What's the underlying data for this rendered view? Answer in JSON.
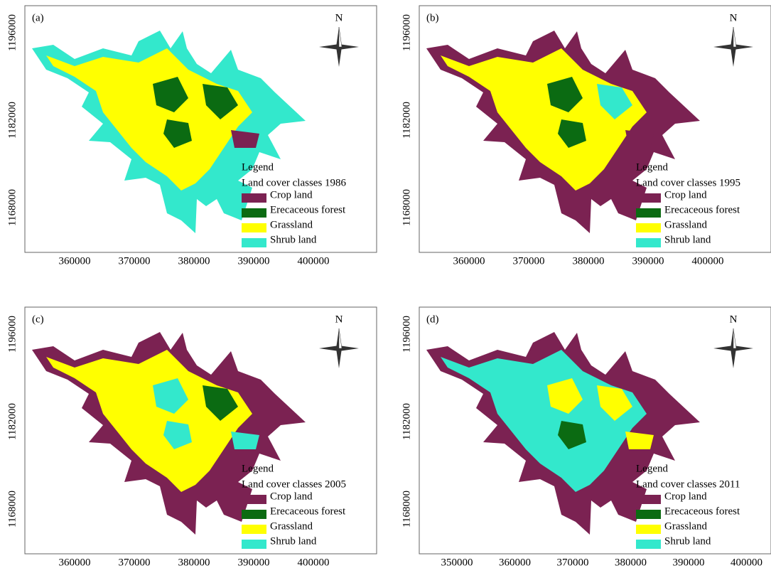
{
  "panels": [
    {
      "label": "(a)",
      "north": "N",
      "legend_title": "Legend",
      "legend_subtitle": "Land cover classes 1986",
      "legend": [
        {
          "name": "Crop land",
          "color": "#7b2252"
        },
        {
          "name": "Erecaceous forest",
          "color": "#0b6b12"
        },
        {
          "name": "Grassland",
          "color": "#ffff00"
        },
        {
          "name": "Shrub land",
          "color": "#33e8cc"
        }
      ],
      "xticks": [
        360000,
        370000,
        380000,
        390000,
        400000
      ],
      "yticks": [
        1196000,
        1182000,
        1168000
      ]
    },
    {
      "label": "(b)",
      "north": "N",
      "legend_title": "Legend",
      "legend_subtitle": "Land cover classes 1995",
      "legend": [
        {
          "name": "Crop land",
          "color": "#7b2252"
        },
        {
          "name": "Erecaceous forest",
          "color": "#0b6b12"
        },
        {
          "name": "Grassland",
          "color": "#ffff00"
        },
        {
          "name": "Shrub land",
          "color": "#33e8cc"
        }
      ],
      "xticks": [
        360000,
        370000,
        380000,
        390000,
        400000
      ],
      "yticks": [
        1196000,
        1182000,
        1168000
      ]
    },
    {
      "label": "(c)",
      "north": "N",
      "legend_title": "Legend",
      "legend_subtitle": "Land cover classes 2005",
      "legend": [
        {
          "name": "Crop land",
          "color": "#7b2252"
        },
        {
          "name": "Erecaceous forest",
          "color": "#0b6b12"
        },
        {
          "name": "Grassland",
          "color": "#ffff00"
        },
        {
          "name": "Shrub land",
          "color": "#33e8cc"
        }
      ],
      "xticks": [
        360000,
        370000,
        380000,
        390000,
        400000
      ],
      "yticks": [
        1196000,
        1182000,
        1168000
      ]
    },
    {
      "label": "(d)",
      "north": "N",
      "legend_title": "Legend",
      "legend_subtitle": "Land cover classes 2011",
      "legend": [
        {
          "name": "Crop land",
          "color": "#7b2252"
        },
        {
          "name": "Erecaceous forest",
          "color": "#0b6b12"
        },
        {
          "name": "Grassland",
          "color": "#ffff00"
        },
        {
          "name": "Shrub land",
          "color": "#33e8cc"
        }
      ],
      "xticks": [
        350000,
        360000,
        370000,
        380000,
        390000,
        400000
      ],
      "yticks": [
        1196000,
        1182000,
        1168000
      ]
    }
  ]
}
